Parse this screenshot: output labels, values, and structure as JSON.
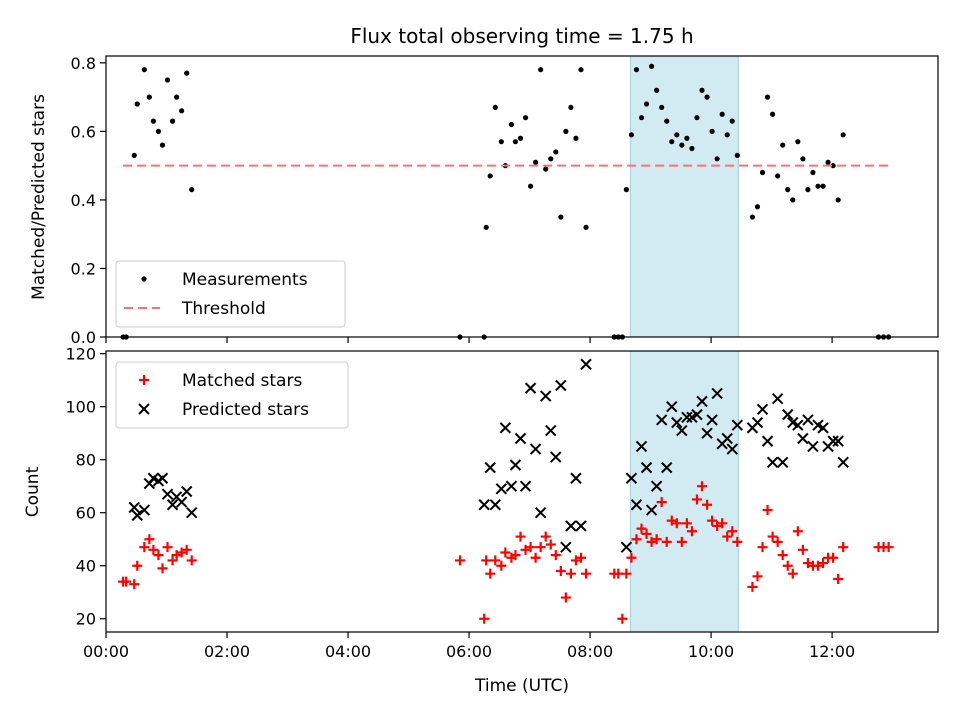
{
  "chart_data": [
    {
      "type": "scatter",
      "title": "Flux total observing time = 1.75 h",
      "ylabel": "Matched/Predicted stars",
      "xlabel": "",
      "xlim": [
        "00:00",
        "13:45"
      ],
      "ylim": [
        0,
        0.82
      ],
      "x_ticks": [
        "00:00",
        "02:00",
        "04:00",
        "06:00",
        "08:00",
        "10:00",
        "12:00"
      ],
      "y_ticks": [
        "0.0",
        "0.2",
        "0.4",
        "0.6",
        "0.8"
      ],
      "highlight_span": {
        "from": "08:40",
        "to": "10:27",
        "color": "#add8e6"
      },
      "legend_placement": "lower-left",
      "series": [
        {
          "name": "Measurements",
          "marker": "dot",
          "color": "#000000",
          "points": [
            [
              "00:17",
              0.0
            ],
            [
              "00:20",
              0.0
            ],
            [
              "00:28",
              0.53
            ],
            [
              "00:31",
              0.68
            ],
            [
              "00:38",
              0.78
            ],
            [
              "00:43",
              0.7
            ],
            [
              "00:47",
              0.63
            ],
            [
              "00:52",
              0.6
            ],
            [
              "00:56",
              0.56
            ],
            [
              "01:01",
              0.75
            ],
            [
              "01:06",
              0.63
            ],
            [
              "01:10",
              0.7
            ],
            [
              "01:15",
              0.66
            ],
            [
              "01:20",
              0.77
            ],
            [
              "01:25",
              0.43
            ],
            [
              "05:51",
              0.0
            ],
            [
              "06:15",
              0.0
            ],
            [
              "06:17",
              0.32
            ],
            [
              "06:21",
              0.47
            ],
            [
              "06:26",
              0.67
            ],
            [
              "06:32",
              0.57
            ],
            [
              "06:36",
              0.5
            ],
            [
              "06:42",
              0.62
            ],
            [
              "06:46",
              0.57
            ],
            [
              "06:51",
              0.58
            ],
            [
              "06:56",
              0.64
            ],
            [
              "07:01",
              0.44
            ],
            [
              "07:06",
              0.51
            ],
            [
              "07:11",
              0.78
            ],
            [
              "07:16",
              0.49
            ],
            [
              "07:21",
              0.52
            ],
            [
              "07:26",
              0.54
            ],
            [
              "07:31",
              0.35
            ],
            [
              "07:36",
              0.6
            ],
            [
              "07:41",
              0.67
            ],
            [
              "07:46",
              0.58
            ],
            [
              "07:51",
              0.78
            ],
            [
              "07:56",
              0.32
            ],
            [
              "08:24",
              0.0
            ],
            [
              "08:28",
              0.0
            ],
            [
              "08:32",
              0.0
            ],
            [
              "08:36",
              0.43
            ],
            [
              "08:41",
              0.59
            ],
            [
              "08:46",
              0.78
            ],
            [
              "08:51",
              0.64
            ],
            [
              "08:56",
              0.68
            ],
            [
              "09:01",
              0.79
            ],
            [
              "09:06",
              0.72
            ],
            [
              "09:11",
              0.67
            ],
            [
              "09:16",
              0.63
            ],
            [
              "09:21",
              0.57
            ],
            [
              "09:26",
              0.59
            ],
            [
              "09:31",
              0.56
            ],
            [
              "09:36",
              0.58
            ],
            [
              "09:41",
              0.55
            ],
            [
              "09:46",
              0.64
            ],
            [
              "09:51",
              0.72
            ],
            [
              "09:56",
              0.7
            ],
            [
              "10:01",
              0.6
            ],
            [
              "10:06",
              0.52
            ],
            [
              "10:11",
              0.65
            ],
            [
              "10:16",
              0.59
            ],
            [
              "10:21",
              0.63
            ],
            [
              "10:26",
              0.53
            ],
            [
              "10:41",
              0.35
            ],
            [
              "10:46",
              0.38
            ],
            [
              "10:51",
              0.48
            ],
            [
              "10:56",
              0.7
            ],
            [
              "11:01",
              0.65
            ],
            [
              "11:06",
              0.47
            ],
            [
              "11:11",
              0.56
            ],
            [
              "11:16",
              0.43
            ],
            [
              "11:21",
              0.4
            ],
            [
              "11:26",
              0.57
            ],
            [
              "11:31",
              0.52
            ],
            [
              "11:36",
              0.43
            ],
            [
              "11:41",
              0.48
            ],
            [
              "11:46",
              0.44
            ],
            [
              "11:51",
              0.44
            ],
            [
              "11:56",
              0.51
            ],
            [
              "12:01",
              0.5
            ],
            [
              "12:06",
              0.4
            ],
            [
              "12:11",
              0.59
            ],
            [
              "12:46",
              0.0
            ],
            [
              "12:51",
              0.0
            ],
            [
              "12:56",
              0.0
            ]
          ]
        },
        {
          "name": "Threshold",
          "style": "dashed-line",
          "color": "#ff7070",
          "points": [
            [
              "00:17",
              0.5
            ],
            [
              "12:56",
              0.5
            ]
          ]
        }
      ]
    },
    {
      "type": "scatter",
      "title": "",
      "ylabel": "Count",
      "xlabel": "Time (UTC)",
      "xlim": [
        "00:00",
        "13:45"
      ],
      "ylim": [
        15,
        121
      ],
      "x_ticks": [
        "00:00",
        "02:00",
        "04:00",
        "06:00",
        "08:00",
        "10:00",
        "12:00"
      ],
      "y_ticks": [
        "20",
        "40",
        "60",
        "80",
        "100",
        "120"
      ],
      "highlight_span": {
        "from": "08:40",
        "to": "10:27",
        "color": "#add8e6"
      },
      "legend_placement": "upper-left",
      "series": [
        {
          "name": "Matched stars",
          "marker": "plus",
          "color": "#ff0000",
          "points": [
            [
              "00:17",
              34
            ],
            [
              "00:20",
              34
            ],
            [
              "00:28",
              33
            ],
            [
              "00:31",
              40
            ],
            [
              "00:38",
              47
            ],
            [
              "00:43",
              50
            ],
            [
              "00:47",
              46
            ],
            [
              "00:52",
              44
            ],
            [
              "00:56",
              39
            ],
            [
              "01:01",
              47
            ],
            [
              "01:06",
              42
            ],
            [
              "01:10",
              44
            ],
            [
              "01:15",
              45
            ],
            [
              "01:20",
              46
            ],
            [
              "01:25",
              42
            ],
            [
              "05:51",
              42
            ],
            [
              "06:15",
              20
            ],
            [
              "06:17",
              42
            ],
            [
              "06:21",
              37
            ],
            [
              "06:26",
              42
            ],
            [
              "06:32",
              40
            ],
            [
              "06:36",
              45
            ],
            [
              "06:42",
              43
            ],
            [
              "06:46",
              44
            ],
            [
              "06:51",
              51
            ],
            [
              "06:56",
              46
            ],
            [
              "07:01",
              47
            ],
            [
              "07:06",
              43
            ],
            [
              "07:11",
              47
            ],
            [
              "07:16",
              51
            ],
            [
              "07:21",
              48
            ],
            [
              "07:26",
              44
            ],
            [
              "07:31",
              38
            ],
            [
              "07:36",
              28
            ],
            [
              "07:41",
              37
            ],
            [
              "07:46",
              42
            ],
            [
              "07:51",
              43
            ],
            [
              "07:56",
              37
            ],
            [
              "08:24",
              37
            ],
            [
              "08:28",
              37
            ],
            [
              "08:32",
              20
            ],
            [
              "08:36",
              37
            ],
            [
              "08:41",
              43
            ],
            [
              "08:46",
              50
            ],
            [
              "08:51",
              54
            ],
            [
              "08:56",
              52
            ],
            [
              "09:01",
              49
            ],
            [
              "09:06",
              50
            ],
            [
              "09:11",
              64
            ],
            [
              "09:16",
              49
            ],
            [
              "09:21",
              57
            ],
            [
              "09:26",
              56
            ],
            [
              "09:31",
              49
            ],
            [
              "09:36",
              56
            ],
            [
              "09:41",
              53
            ],
            [
              "09:46",
              65
            ],
            [
              "09:51",
              70
            ],
            [
              "09:56",
              63
            ],
            [
              "10:01",
              57
            ],
            [
              "10:06",
              55
            ],
            [
              "10:11",
              56
            ],
            [
              "10:16",
              51
            ],
            [
              "10:21",
              53
            ],
            [
              "10:26",
              49
            ],
            [
              "10:41",
              32
            ],
            [
              "10:46",
              36
            ],
            [
              "10:51",
              47
            ],
            [
              "10:56",
              61
            ],
            [
              "11:01",
              51
            ],
            [
              "11:06",
              49
            ],
            [
              "11:11",
              44
            ],
            [
              "11:16",
              40
            ],
            [
              "11:21",
              37
            ],
            [
              "11:26",
              53
            ],
            [
              "11:31",
              46
            ],
            [
              "11:36",
              41
            ],
            [
              "11:41",
              40
            ],
            [
              "11:46",
              40
            ],
            [
              "11:51",
              41
            ],
            [
              "11:56",
              43
            ],
            [
              "12:01",
              43
            ],
            [
              "12:06",
              35
            ],
            [
              "12:11",
              47
            ],
            [
              "12:46",
              47
            ],
            [
              "12:51",
              47
            ],
            [
              "12:56",
              47
            ]
          ]
        },
        {
          "name": "Predicted stars",
          "marker": "x",
          "color": "#000000",
          "points": [
            [
              "00:28",
              62
            ],
            [
              "00:31",
              59
            ],
            [
              "00:38",
              61
            ],
            [
              "00:43",
              71
            ],
            [
              "00:47",
              73
            ],
            [
              "00:52",
              72
            ],
            [
              "00:56",
              73
            ],
            [
              "01:01",
              67
            ],
            [
              "01:06",
              63
            ],
            [
              "01:10",
              66
            ],
            [
              "01:15",
              64
            ],
            [
              "01:20",
              68
            ],
            [
              "01:25",
              60
            ],
            [
              "06:15",
              63
            ],
            [
              "06:21",
              77
            ],
            [
              "06:26",
              63
            ],
            [
              "06:32",
              69
            ],
            [
              "06:36",
              92
            ],
            [
              "06:42",
              70
            ],
            [
              "06:46",
              78
            ],
            [
              "06:51",
              88
            ],
            [
              "06:56",
              70
            ],
            [
              "07:01",
              107
            ],
            [
              "07:06",
              84
            ],
            [
              "07:11",
              60
            ],
            [
              "07:16",
              104
            ],
            [
              "07:21",
              91
            ],
            [
              "07:26",
              81
            ],
            [
              "07:31",
              108
            ],
            [
              "07:36",
              47
            ],
            [
              "07:41",
              55
            ],
            [
              "07:46",
              73
            ],
            [
              "07:51",
              55
            ],
            [
              "07:56",
              116
            ],
            [
              "08:36",
              47
            ],
            [
              "08:41",
              73
            ],
            [
              "08:46",
              63
            ],
            [
              "08:51",
              85
            ],
            [
              "08:56",
              77
            ],
            [
              "09:01",
              61
            ],
            [
              "09:06",
              70
            ],
            [
              "09:11",
              95
            ],
            [
              "09:16",
              77
            ],
            [
              "09:21",
              100
            ],
            [
              "09:26",
              94
            ],
            [
              "09:31",
              91
            ],
            [
              "09:36",
              96
            ],
            [
              "09:41",
              96
            ],
            [
              "09:46",
              97
            ],
            [
              "09:51",
              102
            ],
            [
              "09:56",
              90
            ],
            [
              "10:01",
              95
            ],
            [
              "10:06",
              105
            ],
            [
              "10:11",
              86
            ],
            [
              "10:16",
              88
            ],
            [
              "10:21",
              84
            ],
            [
              "10:26",
              93
            ],
            [
              "10:41",
              92
            ],
            [
              "10:46",
              94
            ],
            [
              "10:51",
              99
            ],
            [
              "10:56",
              87
            ],
            [
              "11:01",
              79
            ],
            [
              "11:06",
              103
            ],
            [
              "11:11",
              79
            ],
            [
              "11:16",
              97
            ],
            [
              "11:21",
              94
            ],
            [
              "11:26",
              93
            ],
            [
              "11:31",
              88
            ],
            [
              "11:36",
              95
            ],
            [
              "11:41",
              85
            ],
            [
              "11:46",
              93
            ],
            [
              "11:51",
              92
            ],
            [
              "11:56",
              85
            ],
            [
              "12:01",
              87
            ],
            [
              "12:06",
              87
            ],
            [
              "12:11",
              79
            ]
          ]
        }
      ]
    }
  ]
}
